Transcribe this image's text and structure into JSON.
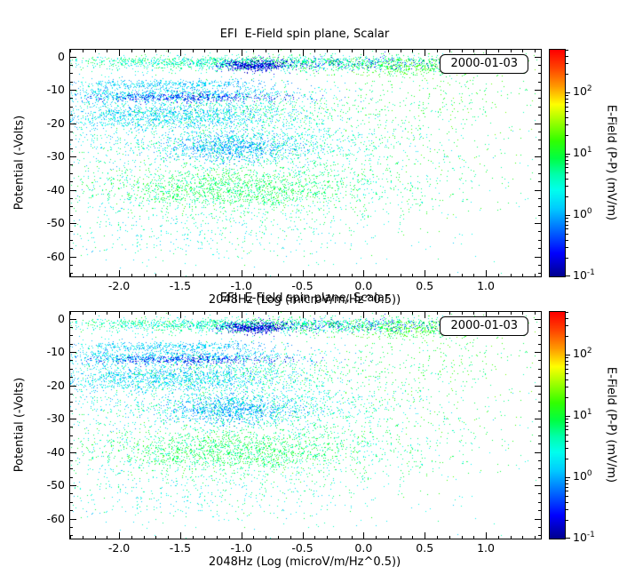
{
  "colors": {
    "background": "#ffffff",
    "axes": "#000000",
    "text": "#000000"
  },
  "chart_data": [
    {
      "type": "scatter",
      "title": "EFI  E-Field spin plane, Scalar",
      "date_label": "2000-01-03",
      "xlabel": "2048Hz (Log (microV/m/Hz^0.5))",
      "ylabel": "Potential (-Volts)",
      "xlim": [
        -2.4,
        1.45
      ],
      "ylim": [
        2,
        -66
      ],
      "x_ticks": [
        -2.0,
        -1.5,
        -1.0,
        -0.5,
        0.0,
        0.5,
        1.0
      ],
      "x_tick_labels": [
        "-2.0",
        "-1.5",
        "-1.0",
        "-0.5",
        "0.0",
        "0.5",
        "1.0"
      ],
      "x_minor_step": 0.1,
      "y_ticks": [
        0,
        -10,
        -20,
        -30,
        -40,
        -50,
        -60
      ],
      "y_tick_labels": [
        "0",
        "-10",
        "-20",
        "-30",
        "-40",
        "-50",
        "-60"
      ],
      "y_minor_step": 2.5,
      "grid": false,
      "point_color_seed": 42,
      "colorbar": {
        "label": "E-Field (P-P) (mV/m)",
        "units": "mV/m",
        "log_range": [
          -1,
          2.7
        ],
        "tick_exponents": [
          -1,
          0,
          1,
          2
        ],
        "stops": [
          [
            0.0,
            "#000090"
          ],
          [
            0.1,
            "#0000ff"
          ],
          [
            0.2,
            "#0066ff"
          ],
          [
            0.3,
            "#00ccff"
          ],
          [
            0.38,
            "#00ffee"
          ],
          [
            0.45,
            "#00ffaa"
          ],
          [
            0.52,
            "#00ff44"
          ],
          [
            0.6,
            "#33ff00"
          ],
          [
            0.68,
            "#99ff00"
          ],
          [
            0.76,
            "#ffff00"
          ],
          [
            0.84,
            "#ff9900"
          ],
          [
            0.92,
            "#ff4400"
          ],
          [
            1.0,
            "#ff0000"
          ]
        ]
      },
      "clusters": [
        {
          "x": -0.65,
          "y": -2.2,
          "sx": 0.85,
          "sy": 1.3,
          "n": 1000,
          "log_v": [
            0.2,
            1.1
          ]
        },
        {
          "x": -0.9,
          "y": -2.6,
          "sx": 0.14,
          "sy": 0.9,
          "n": 450,
          "log_v": [
            -1.0,
            -0.55
          ]
        },
        {
          "x": -0.25,
          "y": -2.2,
          "sx": 0.55,
          "sy": 0.9,
          "n": 260,
          "log_v": [
            -0.8,
            -0.2
          ]
        },
        {
          "x": 0.45,
          "y": -3.2,
          "sx": 0.28,
          "sy": 1.6,
          "n": 380,
          "log_v": [
            0.75,
            1.45
          ]
        },
        {
          "x": -1.55,
          "y": -2.0,
          "sx": 0.45,
          "sy": 0.9,
          "n": 320,
          "log_v": [
            0.1,
            0.9
          ]
        },
        {
          "x": -1.6,
          "y": -8.2,
          "sx": 0.5,
          "sy": 0.7,
          "n": 400,
          "log_v": [
            -0.2,
            0.5
          ]
        },
        {
          "x": -1.55,
          "y": -11.5,
          "sx": 0.55,
          "sy": 1.4,
          "n": 950,
          "log_v": [
            -0.25,
            0.55
          ]
        },
        {
          "x": -1.45,
          "y": -12.3,
          "sx": 0.45,
          "sy": 0.7,
          "n": 350,
          "log_v": [
            -0.95,
            -0.35
          ]
        },
        {
          "x": -1.55,
          "y": -18,
          "sx": 0.5,
          "sy": 2.0,
          "n": 1300,
          "log_v": [
            -0.2,
            0.55
          ]
        },
        {
          "x": -1.0,
          "y": -16,
          "sx": 0.6,
          "sy": 2.5,
          "n": 360,
          "log_v": [
            0.4,
            1.1
          ]
        },
        {
          "x": -0.95,
          "y": -26.5,
          "sx": 0.65,
          "sy": 3.5,
          "n": 1150,
          "log_v": [
            0.0,
            0.9
          ]
        },
        {
          "x": -1.1,
          "y": -27.5,
          "sx": 0.28,
          "sy": 2.0,
          "n": 650,
          "log_v": [
            -0.35,
            0.25
          ]
        },
        {
          "x": -1.15,
          "y": -39.5,
          "sx": 0.55,
          "sy": 3.2,
          "n": 1250,
          "log_v": [
            0.55,
            1.3
          ]
        },
        {
          "x": -0.75,
          "y": -40,
          "sx": 0.85,
          "sy": 4.5,
          "n": 650,
          "log_v": [
            0.25,
            1.05
          ]
        },
        {
          "x": -1.3,
          "y": -52,
          "sx": 0.75,
          "sy": 5.0,
          "n": 430,
          "log_v": [
            0.05,
            0.95
          ]
        },
        {
          "x": -0.8,
          "y": -28,
          "sx": 1.05,
          "sy": 16,
          "n": 950,
          "log_v": [
            0.2,
            1.1
          ]
        },
        {
          "x": 0.35,
          "y": -22,
          "sx": 0.45,
          "sy": 14,
          "n": 320,
          "log_v": [
            0.6,
            1.35
          ]
        },
        {
          "x": -2.05,
          "y": -28,
          "sx": 0.22,
          "sy": 16,
          "n": 230,
          "log_v": [
            -0.1,
            0.7
          ]
        },
        {
          "x": -0.5,
          "y": -1.2,
          "sx": 1.2,
          "sy": 0.5,
          "n": 380,
          "log_v": [
            0.3,
            1.2
          ]
        },
        {
          "x": 0.8,
          "y": -10,
          "sx": 0.35,
          "sy": 8,
          "n": 170,
          "log_v": [
            0.7,
            1.4
          ]
        }
      ]
    },
    {
      "type": "scatter",
      "title": "EFI  E-Field spin plane, Scalar",
      "date_label": "2000-01-03",
      "xlabel": "2048Hz (Log (microV/m/Hz^0.5))",
      "ylabel": "Potential (-Volts)",
      "xlim": [
        -2.4,
        1.45
      ],
      "ylim": [
        2,
        -66
      ],
      "x_ticks": [
        -2.0,
        -1.5,
        -1.0,
        -0.5,
        0.0,
        0.5,
        1.0
      ],
      "x_tick_labels": [
        "-2.0",
        "-1.5",
        "-1.0",
        "-0.5",
        "0.0",
        "0.5",
        "1.0"
      ],
      "x_minor_step": 0.1,
      "y_ticks": [
        0,
        -10,
        -20,
        -30,
        -40,
        -50,
        -60
      ],
      "y_tick_labels": [
        "0",
        "-10",
        "-20",
        "-30",
        "-40",
        "-50",
        "-60"
      ],
      "y_minor_step": 2.5,
      "grid": false,
      "point_color_seed": 42,
      "colorbar": {
        "label": "E-Field (P-P) (mV/m)",
        "units": "mV/m",
        "log_range": [
          -1,
          2.7
        ],
        "tick_exponents": [
          -1,
          0,
          1,
          2
        ],
        "stops": [
          [
            0.0,
            "#000090"
          ],
          [
            0.1,
            "#0000ff"
          ],
          [
            0.2,
            "#0066ff"
          ],
          [
            0.3,
            "#00ccff"
          ],
          [
            0.38,
            "#00ffee"
          ],
          [
            0.45,
            "#00ffaa"
          ],
          [
            0.52,
            "#00ff44"
          ],
          [
            0.6,
            "#33ff00"
          ],
          [
            0.68,
            "#99ff00"
          ],
          [
            0.76,
            "#ffff00"
          ],
          [
            0.84,
            "#ff9900"
          ],
          [
            0.92,
            "#ff4400"
          ],
          [
            1.0,
            "#ff0000"
          ]
        ]
      },
      "clusters": [
        {
          "x": -0.65,
          "y": -2.2,
          "sx": 0.85,
          "sy": 1.3,
          "n": 1000,
          "log_v": [
            0.2,
            1.1
          ]
        },
        {
          "x": -0.9,
          "y": -2.6,
          "sx": 0.14,
          "sy": 0.9,
          "n": 450,
          "log_v": [
            -1.0,
            -0.55
          ]
        },
        {
          "x": -0.25,
          "y": -2.2,
          "sx": 0.55,
          "sy": 0.9,
          "n": 260,
          "log_v": [
            -0.8,
            -0.2
          ]
        },
        {
          "x": 0.45,
          "y": -3.2,
          "sx": 0.28,
          "sy": 1.6,
          "n": 380,
          "log_v": [
            0.75,
            1.45
          ]
        },
        {
          "x": -1.55,
          "y": -2.0,
          "sx": 0.45,
          "sy": 0.9,
          "n": 320,
          "log_v": [
            0.1,
            0.9
          ]
        },
        {
          "x": -1.6,
          "y": -8.2,
          "sx": 0.5,
          "sy": 0.7,
          "n": 400,
          "log_v": [
            -0.2,
            0.5
          ]
        },
        {
          "x": -1.55,
          "y": -11.5,
          "sx": 0.55,
          "sy": 1.4,
          "n": 950,
          "log_v": [
            -0.25,
            0.55
          ]
        },
        {
          "x": -1.45,
          "y": -12.3,
          "sx": 0.45,
          "sy": 0.7,
          "n": 350,
          "log_v": [
            -0.95,
            -0.35
          ]
        },
        {
          "x": -1.55,
          "y": -18,
          "sx": 0.5,
          "sy": 2.0,
          "n": 1300,
          "log_v": [
            -0.2,
            0.55
          ]
        },
        {
          "x": -1.0,
          "y": -16,
          "sx": 0.6,
          "sy": 2.5,
          "n": 360,
          "log_v": [
            0.4,
            1.1
          ]
        },
        {
          "x": -0.95,
          "y": -26.5,
          "sx": 0.65,
          "sy": 3.5,
          "n": 1150,
          "log_v": [
            0.0,
            0.9
          ]
        },
        {
          "x": -1.1,
          "y": -27.5,
          "sx": 0.28,
          "sy": 2.0,
          "n": 650,
          "log_v": [
            -0.35,
            0.25
          ]
        },
        {
          "x": -1.15,
          "y": -39.5,
          "sx": 0.55,
          "sy": 3.2,
          "n": 1250,
          "log_v": [
            0.55,
            1.3
          ]
        },
        {
          "x": -0.75,
          "y": -40,
          "sx": 0.85,
          "sy": 4.5,
          "n": 650,
          "log_v": [
            0.25,
            1.05
          ]
        },
        {
          "x": -1.3,
          "y": -52,
          "sx": 0.75,
          "sy": 5.0,
          "n": 430,
          "log_v": [
            0.05,
            0.95
          ]
        },
        {
          "x": -0.8,
          "y": -28,
          "sx": 1.05,
          "sy": 16,
          "n": 950,
          "log_v": [
            0.2,
            1.1
          ]
        },
        {
          "x": 0.35,
          "y": -22,
          "sx": 0.45,
          "sy": 14,
          "n": 320,
          "log_v": [
            0.6,
            1.35
          ]
        },
        {
          "x": -2.05,
          "y": -28,
          "sx": 0.22,
          "sy": 16,
          "n": 230,
          "log_v": [
            -0.1,
            0.7
          ]
        },
        {
          "x": -0.5,
          "y": -1.2,
          "sx": 1.2,
          "sy": 0.5,
          "n": 380,
          "log_v": [
            0.3,
            1.2
          ]
        },
        {
          "x": 0.8,
          "y": -10,
          "sx": 0.35,
          "sy": 8,
          "n": 170,
          "log_v": [
            0.7,
            1.4
          ]
        }
      ]
    }
  ]
}
